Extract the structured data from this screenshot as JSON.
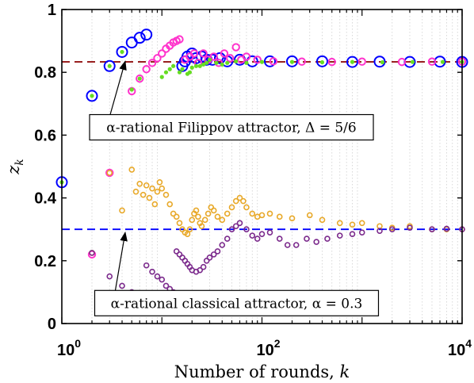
{
  "chart_data": {
    "type": "scatter",
    "title": "",
    "xlabel": "Number of rounds, k",
    "ylabel": "z_k",
    "xscale": "log",
    "xlim": [
      1,
      10000
    ],
    "ylim": [
      0,
      1
    ],
    "x_ticks": [
      {
        "value": 1,
        "base": "10",
        "exp": "0"
      },
      {
        "value": 100,
        "base": "10",
        "exp": "2"
      },
      {
        "value": 10000,
        "base": "10",
        "exp": "4"
      }
    ],
    "y_ticks": [
      {
        "value": 0,
        "label": "0"
      },
      {
        "value": 0.2,
        "label": "0.2"
      },
      {
        "value": 0.4,
        "label": "0.4"
      },
      {
        "value": 0.6,
        "label": "0.6"
      },
      {
        "value": 0.8,
        "label": "0.8"
      },
      {
        "value": 1,
        "label": "1"
      }
    ],
    "grid": {
      "x_minor": true,
      "y": false
    },
    "reference_lines": [
      {
        "y": 0.8333,
        "color": "#8b0000",
        "style": "dashed"
      },
      {
        "y": 0.3,
        "color": "#0000ff",
        "style": "dashed"
      }
    ],
    "annotations": [
      {
        "text": "α-rational Filippov attractor, Δ = 5/6",
        "arrow_to": {
          "x": 4.3,
          "y": 0.835
        },
        "box_anchor": {
          "x": 32,
          "y": 0.63
        }
      },
      {
        "text": "α-rational classical attractor, α = 0.3",
        "arrow_to": {
          "x": 4.3,
          "y": 0.29
        },
        "box_anchor": {
          "x": 36,
          "y": 0.07
        }
      }
    ],
    "series": [
      {
        "color": "#0000ff",
        "marker": "circle",
        "size": "large",
        "stroke": 2,
        "points": [
          [
            1,
            0.45
          ],
          [
            2,
            0.725
          ],
          [
            3,
            0.82
          ],
          [
            4,
            0.865
          ],
          [
            5,
            0.895
          ],
          [
            6,
            0.91
          ],
          [
            7,
            0.92
          ],
          [
            16,
            0.82
          ],
          [
            17,
            0.835
          ],
          [
            18,
            0.85
          ],
          [
            20,
            0.86
          ],
          [
            22,
            0.845
          ],
          [
            25,
            0.85
          ],
          [
            28,
            0.84
          ],
          [
            32,
            0.84
          ],
          [
            38,
            0.845
          ],
          [
            45,
            0.835
          ],
          [
            60,
            0.84
          ],
          [
            80,
            0.835
          ],
          [
            120,
            0.835
          ],
          [
            200,
            0.835
          ],
          [
            400,
            0.835
          ],
          [
            800,
            0.833
          ],
          [
            1500,
            0.834
          ],
          [
            3000,
            0.833
          ],
          [
            6000,
            0.834
          ],
          [
            10000,
            0.833
          ]
        ]
      },
      {
        "color": "#ff33cc",
        "marker": "circle",
        "size": "medium",
        "stroke": 2,
        "points": [
          [
            2,
            0.22
          ],
          [
            3,
            0.48
          ],
          [
            4,
            0.61
          ],
          [
            5,
            0.74
          ],
          [
            6,
            0.78
          ],
          [
            7,
            0.81
          ],
          [
            8,
            0.83
          ],
          [
            9,
            0.845
          ],
          [
            10,
            0.86
          ],
          [
            11,
            0.875
          ],
          [
            12,
            0.885
          ],
          [
            13,
            0.895
          ],
          [
            14,
            0.9
          ],
          [
            15,
            0.905
          ],
          [
            17,
            0.84
          ],
          [
            19,
            0.85
          ],
          [
            21,
            0.86
          ],
          [
            23,
            0.83
          ],
          [
            26,
            0.86
          ],
          [
            29,
            0.84
          ],
          [
            33,
            0.85
          ],
          [
            37,
            0.83
          ],
          [
            42,
            0.86
          ],
          [
            48,
            0.845
          ],
          [
            55,
            0.88
          ],
          [
            62,
            0.84
          ],
          [
            70,
            0.85
          ],
          [
            90,
            0.84
          ],
          [
            130,
            0.835
          ],
          [
            250,
            0.834
          ],
          [
            500,
            0.833
          ],
          [
            1000,
            0.834
          ],
          [
            2500,
            0.833
          ],
          [
            5000,
            0.834
          ],
          [
            10000,
            0.834
          ]
        ]
      },
      {
        "color": "#66dd22",
        "marker": "dot",
        "size": "small",
        "stroke": 0,
        "points": [
          [
            1,
            0.45
          ],
          [
            2,
            0.725
          ],
          [
            3,
            0.82
          ],
          [
            4,
            0.865
          ],
          [
            5,
            0.745
          ],
          [
            6,
            0.78
          ],
          [
            10,
            0.785
          ],
          [
            11,
            0.8
          ],
          [
            12,
            0.81
          ],
          [
            13,
            0.82
          ],
          [
            15,
            0.8
          ],
          [
            16,
            0.81
          ],
          [
            18,
            0.795
          ],
          [
            19,
            0.8
          ],
          [
            20,
            0.815
          ],
          [
            22,
            0.82
          ],
          [
            24,
            0.82
          ],
          [
            26,
            0.825
          ],
          [
            28,
            0.83
          ],
          [
            30,
            0.84
          ],
          [
            35,
            0.83
          ],
          [
            40,
            0.825
          ],
          [
            45,
            0.83
          ],
          [
            55,
            0.835
          ],
          [
            70,
            0.83
          ],
          [
            100,
            0.833
          ],
          [
            200,
            0.833
          ],
          [
            400,
            0.832
          ],
          [
            800,
            0.833
          ],
          [
            1600,
            0.832
          ],
          [
            3200,
            0.833
          ],
          [
            6400,
            0.833
          ],
          [
            10000,
            0.833
          ]
        ]
      },
      {
        "color": "#e8a92a",
        "marker": "circle",
        "size": "small",
        "stroke": 1.6,
        "points": [
          [
            2,
            0.225
          ],
          [
            3,
            0.48
          ],
          [
            4,
            0.36
          ],
          [
            5,
            0.49
          ],
          [
            5.5,
            0.42
          ],
          [
            6,
            0.445
          ],
          [
            6.5,
            0.41
          ],
          [
            7,
            0.44
          ],
          [
            7.5,
            0.4
          ],
          [
            8,
            0.43
          ],
          [
            8.5,
            0.38
          ],
          [
            9,
            0.42
          ],
          [
            9.5,
            0.45
          ],
          [
            10,
            0.43
          ],
          [
            11,
            0.41
          ],
          [
            12,
            0.38
          ],
          [
            13,
            0.35
          ],
          [
            14,
            0.34
          ],
          [
            15,
            0.32
          ],
          [
            16,
            0.3
          ],
          [
            17,
            0.29
          ],
          [
            18,
            0.285
          ],
          [
            19,
            0.3
          ],
          [
            20,
            0.33
          ],
          [
            21,
            0.35
          ],
          [
            22,
            0.36
          ],
          [
            23,
            0.34
          ],
          [
            24,
            0.32
          ],
          [
            25,
            0.31
          ],
          [
            27,
            0.33
          ],
          [
            29,
            0.35
          ],
          [
            31,
            0.37
          ],
          [
            33,
            0.36
          ],
          [
            36,
            0.34
          ],
          [
            40,
            0.33
          ],
          [
            45,
            0.35
          ],
          [
            50,
            0.37
          ],
          [
            55,
            0.39
          ],
          [
            60,
            0.4
          ],
          [
            65,
            0.39
          ],
          [
            70,
            0.37
          ],
          [
            80,
            0.35
          ],
          [
            90,
            0.34
          ],
          [
            100,
            0.345
          ],
          [
            120,
            0.35
          ],
          [
            150,
            0.34
          ],
          [
            200,
            0.335
          ],
          [
            300,
            0.345
          ],
          [
            400,
            0.33
          ],
          [
            600,
            0.32
          ],
          [
            800,
            0.315
          ],
          [
            1000,
            0.32
          ],
          [
            1500,
            0.31
          ],
          [
            2000,
            0.305
          ],
          [
            3000,
            0.31
          ],
          [
            5000,
            0.3
          ],
          [
            7000,
            0.3
          ],
          [
            10000,
            0.3
          ]
        ]
      },
      {
        "color": "#7b2a8c",
        "marker": "circle",
        "size": "small",
        "stroke": 1.6,
        "points": [
          [
            2,
            0.225
          ],
          [
            3,
            0.15
          ],
          [
            4,
            0.12
          ],
          [
            5,
            0.1
          ],
          [
            6,
            0.08
          ],
          [
            7,
            0.185
          ],
          [
            8,
            0.165
          ],
          [
            9,
            0.15
          ],
          [
            10,
            0.14
          ],
          [
            11,
            0.12
          ],
          [
            12,
            0.11
          ],
          [
            13,
            0.1
          ],
          [
            14,
            0.23
          ],
          [
            15,
            0.22
          ],
          [
            16,
            0.21
          ],
          [
            17,
            0.2
          ],
          [
            18,
            0.19
          ],
          [
            19,
            0.18
          ],
          [
            20,
            0.17
          ],
          [
            22,
            0.165
          ],
          [
            24,
            0.17
          ],
          [
            26,
            0.18
          ],
          [
            28,
            0.2
          ],
          [
            30,
            0.21
          ],
          [
            33,
            0.22
          ],
          [
            36,
            0.23
          ],
          [
            40,
            0.25
          ],
          [
            45,
            0.27
          ],
          [
            50,
            0.3
          ],
          [
            55,
            0.31
          ],
          [
            60,
            0.32
          ],
          [
            70,
            0.3
          ],
          [
            80,
            0.28
          ],
          [
            90,
            0.27
          ],
          [
            100,
            0.285
          ],
          [
            120,
            0.29
          ],
          [
            150,
            0.27
          ],
          [
            180,
            0.25
          ],
          [
            220,
            0.25
          ],
          [
            280,
            0.27
          ],
          [
            350,
            0.26
          ],
          [
            450,
            0.27
          ],
          [
            600,
            0.28
          ],
          [
            800,
            0.285
          ],
          [
            1000,
            0.29
          ],
          [
            1500,
            0.295
          ],
          [
            2000,
            0.3
          ],
          [
            3000,
            0.305
          ],
          [
            5000,
            0.3
          ],
          [
            7000,
            0.302
          ],
          [
            10000,
            0.3
          ]
        ]
      }
    ]
  }
}
